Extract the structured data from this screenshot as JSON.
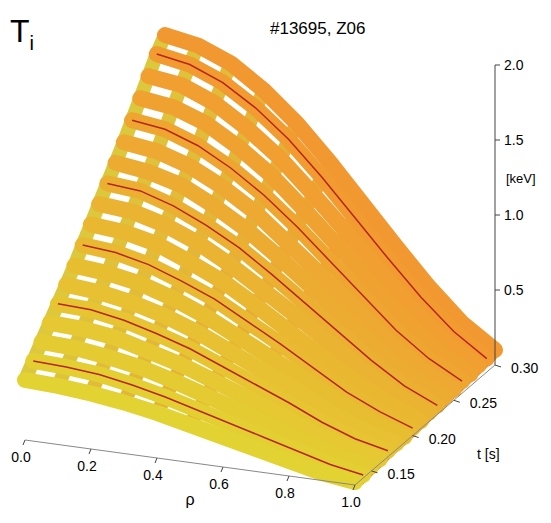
{
  "chart_data": {
    "type": "surface",
    "title": "T",
    "title_subscript": "i",
    "subtitle": "#13695, Z06",
    "x_label": "ρ",
    "y_label": "t [s]",
    "z_label": "[keV]",
    "x": [
      0,
      0.1,
      0.2,
      0.3,
      0.4,
      0.5,
      0.6,
      0.7,
      0.8,
      0.9,
      1.0
    ],
    "y": [
      0.13,
      0.14,
      0.15,
      0.16,
      0.17,
      0.18,
      0.19,
      0.2,
      0.21,
      0.22,
      0.23,
      0.24,
      0.25,
      0.26,
      0.27,
      0.28,
      0.29,
      0.3
    ],
    "z": [
      [
        0.4,
        0.39,
        0.37,
        0.34,
        0.3,
        0.25,
        0.2,
        0.15,
        0.1,
        0.05,
        0.02
      ],
      [
        0.48,
        0.47,
        0.45,
        0.41,
        0.36,
        0.3,
        0.24,
        0.18,
        0.12,
        0.06,
        0.02
      ],
      [
        0.56,
        0.55,
        0.52,
        0.48,
        0.42,
        0.35,
        0.28,
        0.21,
        0.13,
        0.07,
        0.03
      ],
      [
        0.64,
        0.63,
        0.6,
        0.54,
        0.48,
        0.4,
        0.32,
        0.24,
        0.15,
        0.08,
        0.03
      ],
      [
        0.72,
        0.71,
        0.67,
        0.61,
        0.54,
        0.45,
        0.36,
        0.27,
        0.17,
        0.09,
        0.04
      ],
      [
        0.8,
        0.78,
        0.74,
        0.68,
        0.6,
        0.5,
        0.4,
        0.3,
        0.19,
        0.1,
        0.04
      ],
      [
        0.88,
        0.86,
        0.82,
        0.75,
        0.66,
        0.55,
        0.44,
        0.33,
        0.21,
        0.11,
        0.04
      ],
      [
        0.97,
        0.95,
        0.9,
        0.82,
        0.73,
        0.61,
        0.49,
        0.36,
        0.23,
        0.13,
        0.05
      ],
      [
        1.06,
        1.04,
        0.99,
        0.9,
        0.8,
        0.67,
        0.53,
        0.39,
        0.25,
        0.14,
        0.05
      ],
      [
        1.15,
        1.13,
        1.07,
        0.98,
        0.86,
        0.72,
        0.58,
        0.43,
        0.28,
        0.15,
        0.06
      ],
      [
        1.24,
        1.22,
        1.15,
        1.05,
        0.93,
        0.78,
        0.62,
        0.46,
        0.3,
        0.16,
        0.06
      ],
      [
        1.33,
        1.3,
        1.24,
        1.13,
        1.0,
        0.84,
        0.67,
        0.49,
        0.32,
        0.17,
        0.07
      ],
      [
        1.42,
        1.39,
        1.32,
        1.21,
        1.07,
        0.89,
        0.71,
        0.53,
        0.34,
        0.18,
        0.07
      ],
      [
        1.52,
        1.49,
        1.41,
        1.29,
        1.14,
        0.96,
        0.76,
        0.56,
        0.36,
        0.2,
        0.08
      ],
      [
        1.62,
        1.59,
        1.51,
        1.38,
        1.22,
        1.02,
        0.81,
        0.6,
        0.39,
        0.21,
        0.08
      ],
      [
        1.72,
        1.69,
        1.6,
        1.46,
        1.29,
        1.08,
        0.86,
        0.64,
        0.41,
        0.22,
        0.09
      ],
      [
        1.82,
        1.78,
        1.69,
        1.55,
        1.37,
        1.15,
        0.91,
        0.67,
        0.44,
        0.24,
        0.09
      ],
      [
        1.9,
        1.86,
        1.77,
        1.62,
        1.43,
        1.2,
        0.95,
        0.7,
        0.46,
        0.25,
        0.1
      ]
    ],
    "xlim": [
      0,
      1
    ],
    "xticks": [
      {
        "value": 0,
        "label": "0.0"
      },
      0.2,
      0.4,
      0.6,
      0.8,
      {
        "value": 1,
        "label": "1.0"
      }
    ],
    "ylim": [
      0.13,
      0.3
    ],
    "yticks": [
      0.15,
      {
        "value": 0.2,
        "label": "0.20"
      },
      0.25,
      {
        "value": 0.3,
        "label": "0.30"
      }
    ],
    "zlim": [
      0,
      2
    ],
    "zticks": [
      0.5,
      {
        "value": 1,
        "label": "1.0"
      },
      1.5,
      {
        "value": 2,
        "label": "2.0"
      }
    ]
  }
}
